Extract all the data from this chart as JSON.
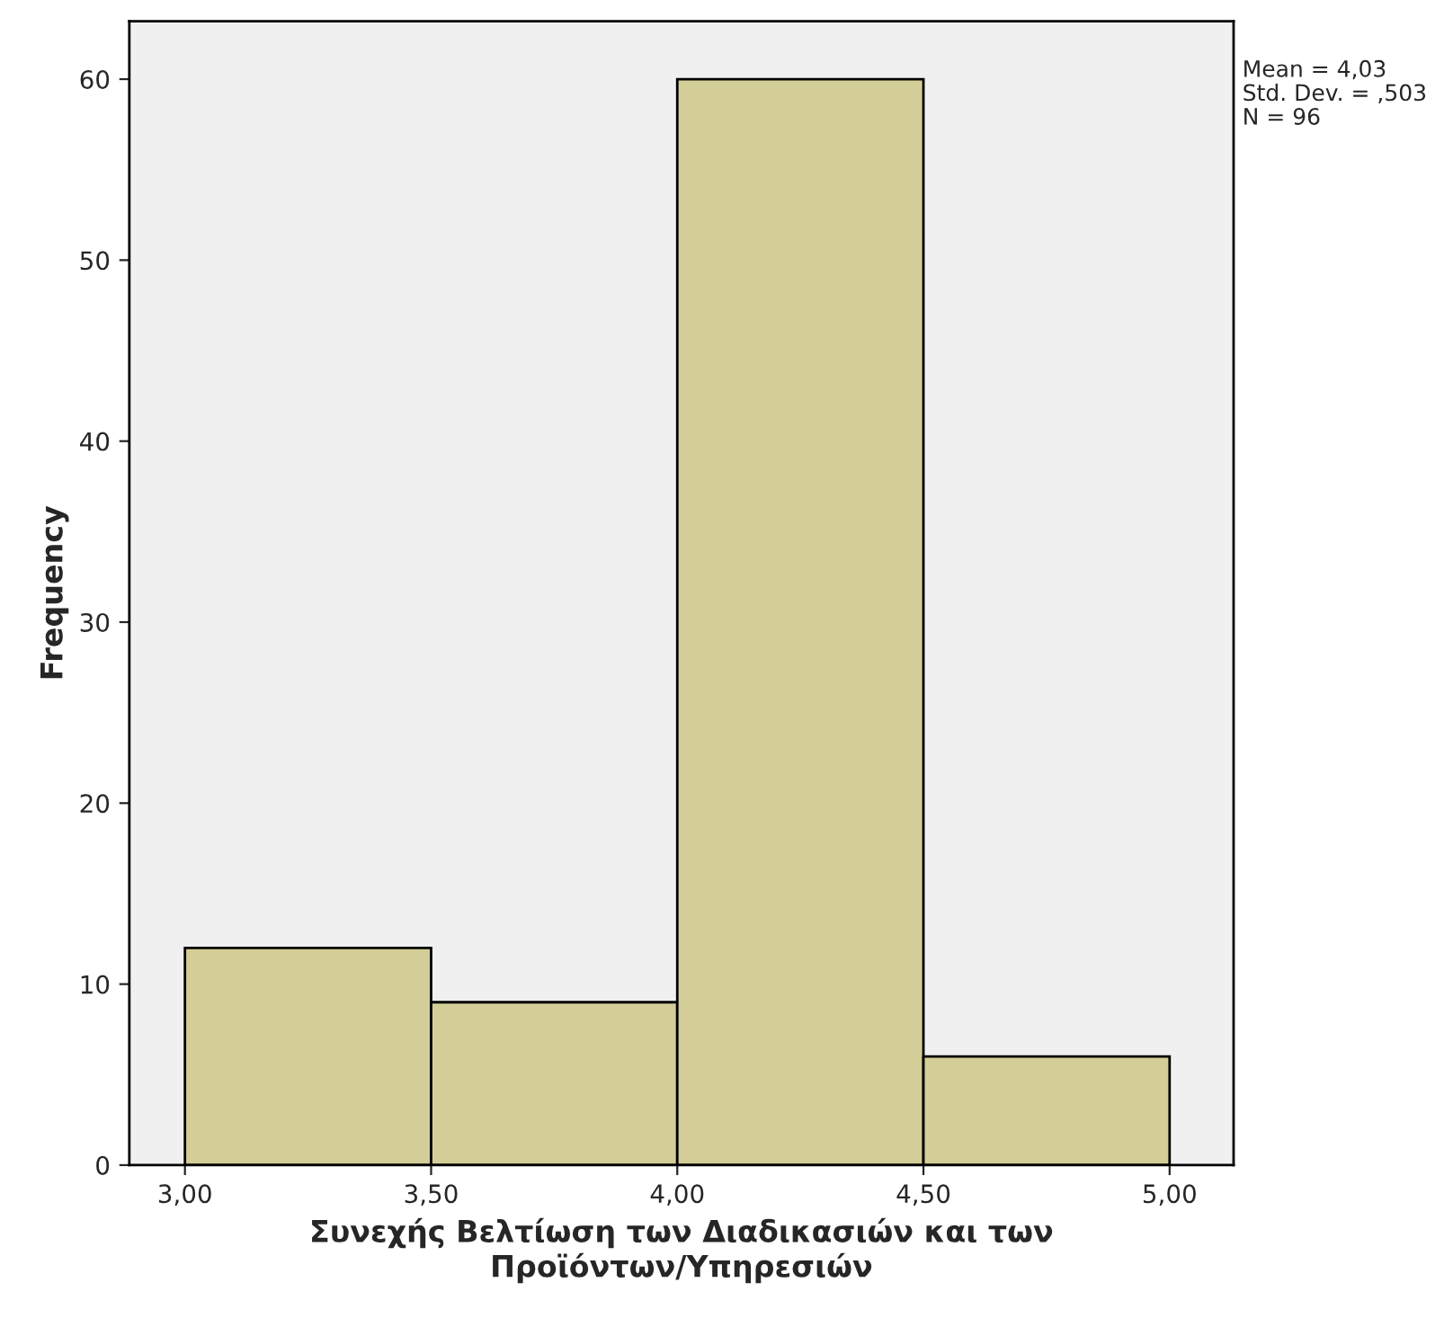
{
  "chart_data": {
    "type": "histogram",
    "xlabel": "Συνεχής Βελτίωση των Διαδικασιών και των Προϊόντων/Υπηρεσιών",
    "ylabel": "Frequency",
    "bins": [
      3.0,
      3.5,
      4.0,
      4.5,
      5.0
    ],
    "values": [
      12,
      9,
      60,
      6
    ],
    "color": "#d3ce97",
    "xlim": [
      2.887,
      5.13
    ],
    "xticks": [
      {
        "value": 3.0,
        "label": "3,00"
      },
      {
        "value": 3.5,
        "label": "3,50"
      },
      {
        "value": 4.0,
        "label": "4,00"
      },
      {
        "value": 4.5,
        "label": "4,50"
      },
      {
        "value": 5.0,
        "label": "5,00"
      }
    ],
    "ylim": [
      0,
      63.2
    ],
    "yticks": [
      0,
      10,
      20,
      30,
      40,
      50,
      60
    ],
    "grid": false,
    "legend": false,
    "annotations": [
      "Mean = 4,03",
      "Std. Dev. = ,503",
      "N = 96"
    ]
  }
}
